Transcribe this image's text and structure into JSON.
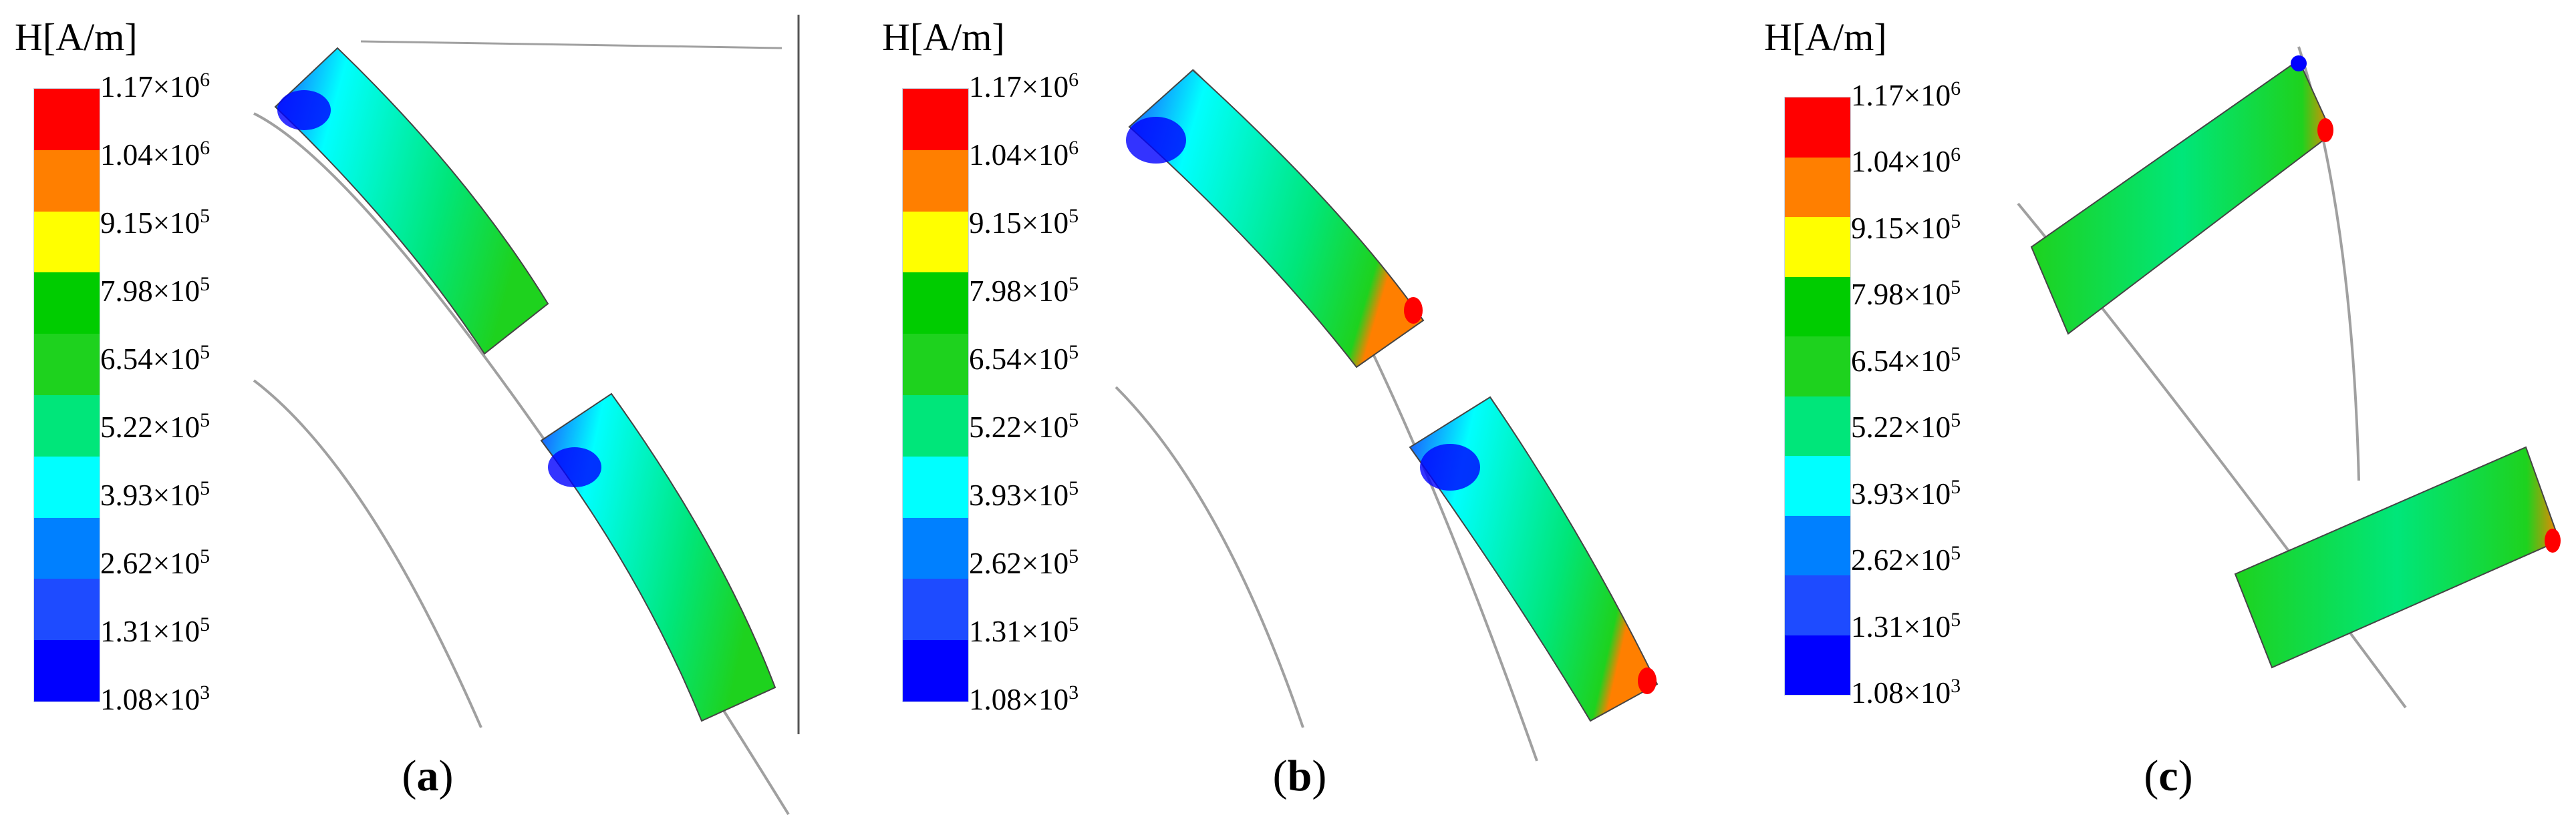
{
  "legend": {
    "title": "H[A/m]",
    "colors": [
      "#ff0000",
      "#ff7f00",
      "#ffff00",
      "#00cc00",
      "#1ed21e",
      "#00e67a",
      "#00ffff",
      "#0080ff",
      "#1e4bff",
      "#0000ff"
    ],
    "ticks": [
      {
        "mantissa": "1.17",
        "exponent": "6"
      },
      {
        "mantissa": "1.04",
        "exponent": "6"
      },
      {
        "mantissa": "9.15",
        "exponent": "5"
      },
      {
        "mantissa": "7.98",
        "exponent": "5"
      },
      {
        "mantissa": "6.54",
        "exponent": "5"
      },
      {
        "mantissa": "5.22",
        "exponent": "5"
      },
      {
        "mantissa": "3.93",
        "exponent": "5"
      },
      {
        "mantissa": "2.62",
        "exponent": "5"
      },
      {
        "mantissa": "1.31",
        "exponent": "5"
      },
      {
        "mantissa": "1.08",
        "exponent": "3"
      }
    ],
    "times": "×10"
  },
  "panels": [
    {
      "label_open": "(",
      "label": "a",
      "label_close": ")"
    },
    {
      "label_open": "(",
      "label": "b",
      "label_close": ")"
    },
    {
      "label_open": "(",
      "label": "c",
      "label_close": ")"
    }
  ]
}
